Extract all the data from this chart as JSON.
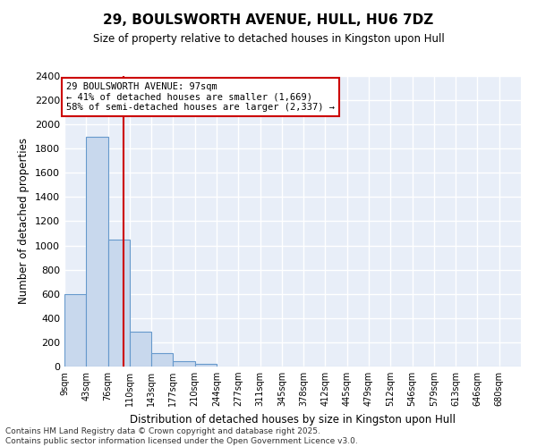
{
  "title": "29, BOULSWORTH AVENUE, HULL, HU6 7DZ",
  "subtitle": "Size of property relative to detached houses in Kingston upon Hull",
  "xlabel": "Distribution of detached houses by size in Kingston upon Hull",
  "ylabel": "Number of detached properties",
  "annotation_line1": "29 BOULSWORTH AVENUE: 97sqm",
  "annotation_line2": "← 41% of detached houses are smaller (1,669)",
  "annotation_line3": "58% of semi-detached houses are larger (2,337) →",
  "categories": [
    "9sqm",
    "43sqm",
    "76sqm",
    "110sqm",
    "143sqm",
    "177sqm",
    "210sqm",
    "244sqm",
    "277sqm",
    "311sqm",
    "345sqm",
    "378sqm",
    "412sqm",
    "445sqm",
    "479sqm",
    "512sqm",
    "546sqm",
    "579sqm",
    "613sqm",
    "646sqm",
    "680sqm"
  ],
  "values": [
    600,
    1900,
    1050,
    290,
    110,
    45,
    20,
    0,
    0,
    0,
    0,
    0,
    0,
    0,
    0,
    0,
    0,
    0,
    0,
    0,
    0
  ],
  "bar_fill_color": "#c8d8ed",
  "bar_edge_color": "#6699cc",
  "vline_color": "#cc0000",
  "vline_x": 2.7,
  "annotation_box_color": "#cc0000",
  "background_color": "#e8eef8",
  "grid_color": "#ffffff",
  "ylim": [
    0,
    2400
  ],
  "yticks": [
    0,
    200,
    400,
    600,
    800,
    1000,
    1200,
    1400,
    1600,
    1800,
    2000,
    2200,
    2400
  ],
  "footer_line1": "Contains HM Land Registry data © Crown copyright and database right 2025.",
  "footer_line2": "Contains public sector information licensed under the Open Government Licence v3.0."
}
